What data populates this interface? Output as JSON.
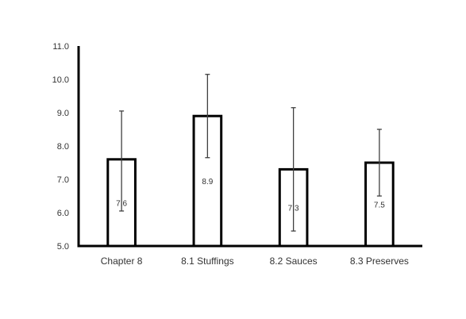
{
  "chart_data": {
    "type": "bar",
    "categories": [
      "Chapter 8",
      "8.1 Stuffings",
      "8.2 Sauces",
      "8.3 Preserves"
    ],
    "values": [
      7.6,
      8.9,
      7.3,
      7.5
    ],
    "error_bars": {
      "upper": [
        9.05,
        10.15,
        9.15,
        8.5
      ],
      "lower": [
        6.05,
        7.65,
        5.45,
        6.5
      ]
    },
    "data_labels": [
      "7.6",
      "8.9",
      "7.3",
      "7.5"
    ],
    "yticks": [
      "5.0",
      "6.0",
      "7.0",
      "8.0",
      "9.0",
      "10.0",
      "11.0"
    ],
    "ylim": [
      5,
      11
    ],
    "grid": false,
    "bar_fill": "#ffffff",
    "bar_stroke": "#000000",
    "error_color": "#404040"
  }
}
